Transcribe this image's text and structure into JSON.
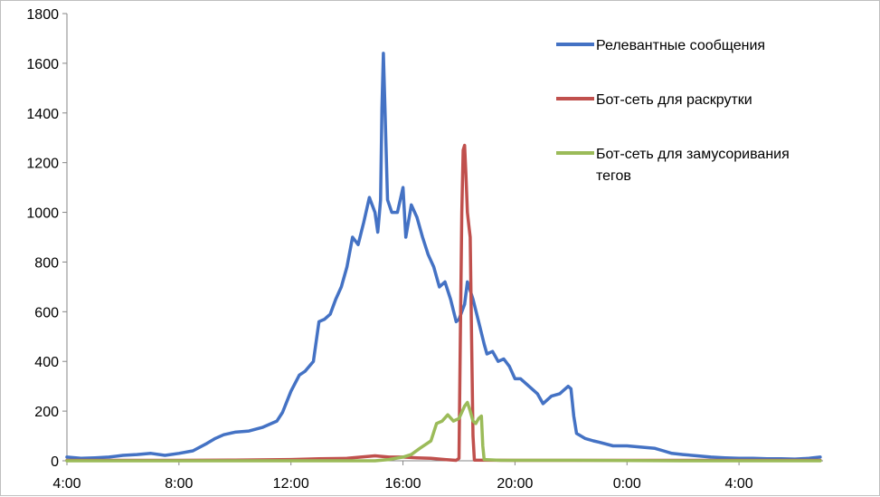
{
  "chart_data": {
    "type": "line",
    "title": "",
    "xlabel": "",
    "ylabel": "",
    "ylim": [
      0,
      1800
    ],
    "xlim": [
      "04:00",
      "07:00 (+1 day)"
    ],
    "grid": false,
    "legend_position": "right",
    "y_ticks": [
      "0",
      "200",
      "400",
      "600",
      "800",
      "1000",
      "1200",
      "1400",
      "1600",
      "1800"
    ],
    "x_ticks": [
      "4:00",
      "8:00",
      "12:00",
      "16:00",
      "20:00",
      "0:00",
      "4:00"
    ],
    "x_tick_hours": [
      4,
      8,
      12,
      16,
      20,
      24,
      28
    ],
    "series": [
      {
        "name": "Релевантные сообщения",
        "color": "#4472c4",
        "points": [
          [
            4.0,
            15
          ],
          [
            4.5,
            10
          ],
          [
            5.0,
            12
          ],
          [
            5.5,
            15
          ],
          [
            6.0,
            22
          ],
          [
            6.5,
            25
          ],
          [
            7.0,
            30
          ],
          [
            7.5,
            22
          ],
          [
            8.0,
            30
          ],
          [
            8.5,
            40
          ],
          [
            9.0,
            70
          ],
          [
            9.3,
            90
          ],
          [
            9.6,
            105
          ],
          [
            10.0,
            115
          ],
          [
            10.5,
            120
          ],
          [
            11.0,
            135
          ],
          [
            11.5,
            160
          ],
          [
            11.7,
            195
          ],
          [
            12.0,
            280
          ],
          [
            12.3,
            345
          ],
          [
            12.5,
            360
          ],
          [
            12.8,
            400
          ],
          [
            13.0,
            560
          ],
          [
            13.2,
            570
          ],
          [
            13.4,
            590
          ],
          [
            13.6,
            650
          ],
          [
            13.8,
            700
          ],
          [
            14.0,
            780
          ],
          [
            14.2,
            900
          ],
          [
            14.4,
            870
          ],
          [
            14.6,
            960
          ],
          [
            14.8,
            1060
          ],
          [
            15.0,
            1000
          ],
          [
            15.1,
            920
          ],
          [
            15.2,
            1050
          ],
          [
            15.25,
            1420
          ],
          [
            15.3,
            1640
          ],
          [
            15.35,
            1450
          ],
          [
            15.45,
            1050
          ],
          [
            15.6,
            1000
          ],
          [
            15.8,
            1000
          ],
          [
            16.0,
            1100
          ],
          [
            16.1,
            900
          ],
          [
            16.3,
            1030
          ],
          [
            16.5,
            980
          ],
          [
            16.7,
            900
          ],
          [
            16.9,
            830
          ],
          [
            17.1,
            780
          ],
          [
            17.3,
            700
          ],
          [
            17.5,
            720
          ],
          [
            17.7,
            650
          ],
          [
            17.9,
            560
          ],
          [
            18.0,
            570
          ],
          [
            18.2,
            630
          ],
          [
            18.3,
            720
          ],
          [
            18.5,
            650
          ],
          [
            18.7,
            560
          ],
          [
            18.9,
            470
          ],
          [
            19.0,
            430
          ],
          [
            19.2,
            440
          ],
          [
            19.4,
            400
          ],
          [
            19.6,
            410
          ],
          [
            19.8,
            380
          ],
          [
            20.0,
            330
          ],
          [
            20.2,
            330
          ],
          [
            20.5,
            300
          ],
          [
            20.8,
            270
          ],
          [
            21.0,
            230
          ],
          [
            21.3,
            260
          ],
          [
            21.6,
            270
          ],
          [
            21.9,
            300
          ],
          [
            22.0,
            290
          ],
          [
            22.1,
            180
          ],
          [
            22.2,
            110
          ],
          [
            22.5,
            90
          ],
          [
            22.8,
            80
          ],
          [
            23.0,
            75
          ],
          [
            23.5,
            60
          ],
          [
            24.0,
            60
          ],
          [
            24.5,
            55
          ],
          [
            25.0,
            50
          ],
          [
            25.3,
            40
          ],
          [
            25.6,
            30
          ],
          [
            26.0,
            25
          ],
          [
            26.5,
            20
          ],
          [
            27.0,
            15
          ],
          [
            27.5,
            12
          ],
          [
            28.0,
            10
          ],
          [
            28.5,
            10
          ],
          [
            29.0,
            8
          ],
          [
            29.5,
            8
          ],
          [
            30.0,
            7
          ],
          [
            30.5,
            10
          ],
          [
            30.9,
            15
          ]
        ]
      },
      {
        "name": "Бот-сеть для раскрутки",
        "color": "#c0504d",
        "points": [
          [
            4.0,
            2
          ],
          [
            8.0,
            2
          ],
          [
            10.0,
            3
          ],
          [
            12.0,
            5
          ],
          [
            13.0,
            8
          ],
          [
            14.0,
            10
          ],
          [
            15.0,
            20
          ],
          [
            15.5,
            15
          ],
          [
            16.0,
            15
          ],
          [
            16.5,
            12
          ],
          [
            17.0,
            10
          ],
          [
            17.5,
            5
          ],
          [
            17.9,
            2
          ],
          [
            18.0,
            10
          ],
          [
            18.05,
            500
          ],
          [
            18.1,
            1000
          ],
          [
            18.15,
            1250
          ],
          [
            18.2,
            1270
          ],
          [
            18.25,
            1150
          ],
          [
            18.3,
            1000
          ],
          [
            18.35,
            950
          ],
          [
            18.4,
            900
          ],
          [
            18.45,
            500
          ],
          [
            18.5,
            100
          ],
          [
            18.55,
            3
          ],
          [
            20.0,
            2
          ],
          [
            24.0,
            2
          ],
          [
            28.0,
            2
          ],
          [
            30.9,
            2
          ]
        ]
      },
      {
        "name": "Бот-сеть для замусоривания тегов",
        "color": "#9bbb59",
        "points": [
          [
            4.0,
            0
          ],
          [
            8.0,
            0
          ],
          [
            12.0,
            0
          ],
          [
            15.0,
            0
          ],
          [
            15.5,
            5
          ],
          [
            16.0,
            15
          ],
          [
            16.3,
            25
          ],
          [
            16.6,
            50
          ],
          [
            17.0,
            80
          ],
          [
            17.2,
            150
          ],
          [
            17.4,
            160
          ],
          [
            17.6,
            185
          ],
          [
            17.8,
            160
          ],
          [
            18.0,
            170
          ],
          [
            18.2,
            220
          ],
          [
            18.3,
            235
          ],
          [
            18.4,
            200
          ],
          [
            18.5,
            160
          ],
          [
            18.6,
            150
          ],
          [
            18.7,
            170
          ],
          [
            18.8,
            180
          ],
          [
            18.85,
            60
          ],
          [
            18.9,
            5
          ],
          [
            19.5,
            2
          ],
          [
            22.0,
            2
          ],
          [
            26.0,
            0
          ],
          [
            30.9,
            0
          ]
        ]
      }
    ]
  }
}
